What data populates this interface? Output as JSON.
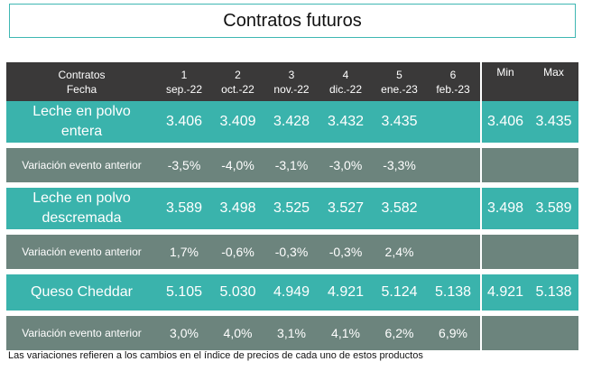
{
  "title": "Contratos futuros",
  "header": {
    "col0_line1": "Contratos",
    "col0_line2": "Fecha",
    "contracts": [
      {
        "num": "1",
        "date": "sep.-22"
      },
      {
        "num": "2",
        "date": "oct.-22"
      },
      {
        "num": "3",
        "date": "nov.-22"
      },
      {
        "num": "4",
        "date": "dic.-22"
      },
      {
        "num": "5",
        "date": "ene.-23"
      },
      {
        "num": "6",
        "date": "feb.-23"
      }
    ],
    "min": "Min",
    "max": "Max"
  },
  "rows": [
    {
      "product": "Leche en polvo entera",
      "values": [
        "3.406",
        "3.409",
        "3.428",
        "3.432",
        "3.435",
        ""
      ],
      "min": "3.406",
      "max": "3.435",
      "variation_label": "Variación evento anterior",
      "variations": [
        "-3,5%",
        "-4,0%",
        "-3,1%",
        "-3,0%",
        "-3,3%",
        ""
      ]
    },
    {
      "product": "Leche en polvo descremada",
      "values": [
        "3.589",
        "3.498",
        "3.525",
        "3.527",
        "3.582",
        ""
      ],
      "min": "3.498",
      "max": "3.589",
      "variation_label": "Variación evento anterior",
      "variations": [
        "1,7%",
        "-0,6%",
        "-0,3%",
        "-0,3%",
        "2,4%",
        ""
      ]
    },
    {
      "product": "Queso Cheddar",
      "values": [
        "5.105",
        "5.030",
        "4.949",
        "4.921",
        "5.124",
        "5.138"
      ],
      "min": "4.921",
      "max": "5.138",
      "variation_label": "Variación evento anterior",
      "variations": [
        "3,0%",
        "4,0%",
        "3,1%",
        "4,1%",
        "6,2%",
        "6,9%"
      ]
    }
  ],
  "footnote": "Las variaciones refieren a los cambios en el índice de precios de cada uno de estos productos",
  "colors": {
    "header_bg": "#3a3939",
    "product_bg": "#3ab3ac",
    "variation_bg": "#6c847d",
    "title_border": "#3fb7b3"
  }
}
